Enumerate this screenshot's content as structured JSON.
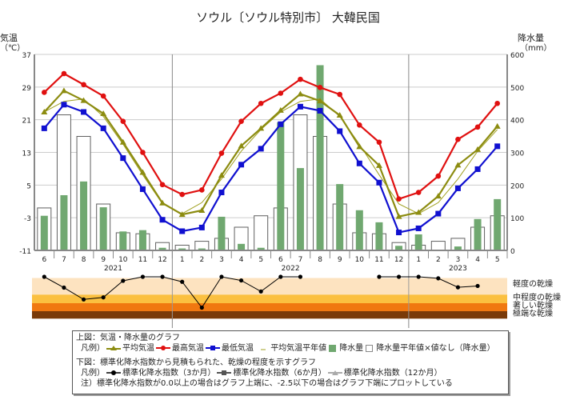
{
  "title": "ソウル〔ソウル特別市〕 大韓民国",
  "chart_data": [
    {
      "type": "line+bar",
      "title": "ソウル〔ソウル特別市〕 大韓民国",
      "ylabel_left": "気温",
      "ylabel_left_unit": "（℃）",
      "ylabel_right": "降水量",
      "ylabel_right_unit": "（mm）",
      "ylim_left": [
        -11,
        37
      ],
      "yticks_left": [
        -11,
        -3,
        5,
        13,
        21,
        29,
        37
      ],
      "ylim_right": [
        0,
        600
      ],
      "yticks_right": [
        0,
        100,
        200,
        300,
        400,
        500,
        600
      ],
      "grid": true,
      "categories": [
        "6",
        "7",
        "8",
        "9",
        "10",
        "11",
        "12",
        "1",
        "2",
        "3",
        "4",
        "5",
        "6",
        "7",
        "8",
        "9",
        "10",
        "11",
        "12",
        "1",
        "2",
        "3",
        "4",
        "5"
      ],
      "years": [
        {
          "label": "2021",
          "from": 0,
          "to": 6
        },
        {
          "label": "2022",
          "from": 7,
          "to": 18
        },
        {
          "label": "2023",
          "from": 19,
          "to": 23
        }
      ],
      "series": [
        {
          "name": "最高気温",
          "kind": "line",
          "axis": "left",
          "color": "#e01010",
          "marker": "circle",
          "values": [
            27.7,
            32.3,
            29.6,
            26.8,
            20.6,
            13.0,
            5.1,
            2.7,
            3.8,
            12.8,
            20.6,
            25.0,
            27.5,
            30.9,
            28.9,
            27.2,
            19.7,
            15.5,
            1.6,
            3.2,
            7.2,
            16.2,
            19.2,
            25.0
          ]
        },
        {
          "name": "平均気温",
          "kind": "line",
          "axis": "left",
          "color": "#8c8c10",
          "marker": "triangle",
          "values": [
            22.9,
            28.1,
            25.7,
            22.5,
            15.5,
            8.1,
            0.6,
            -2.2,
            -1.2,
            7.4,
            14.6,
            18.9,
            23.3,
            27.3,
            25.6,
            22.1,
            14.4,
            9.8,
            -2.7,
            -1.7,
            2.3,
            9.9,
            13.7,
            19.4
          ]
        },
        {
          "name": "最低気温",
          "kind": "line",
          "axis": "left",
          "color": "#1010d0",
          "marker": "square",
          "values": [
            18.9,
            24.7,
            22.9,
            18.9,
            11.6,
            4.0,
            -3.5,
            -6.3,
            -5.4,
            3.2,
            10.0,
            13.9,
            19.9,
            24.2,
            23.2,
            18.2,
            10.3,
            5.6,
            -6.6,
            -5.6,
            -2.0,
            4.2,
            8.9,
            14.5
          ]
        },
        {
          "name": "平均気温平年値",
          "kind": "thin-line",
          "axis": "left",
          "color": "#a0a020",
          "values": [
            22.9,
            25.5,
            26.1,
            21.8,
            15.0,
            7.5,
            0.4,
            -2.0,
            0.7,
            6.5,
            13.3,
            18.6,
            22.9,
            25.5,
            26.1,
            21.8,
            15.0,
            7.5,
            0.4,
            -2.0,
            0.7,
            6.5,
            13.3,
            18.6
          ]
        },
        {
          "name": "降水量",
          "kind": "bar",
          "axis": "right",
          "color": "#70a870",
          "values": [
            106,
            169,
            211,
            132,
            58,
            62,
            8,
            6,
            6,
            103,
            20,
            8,
            392,
            252,
            567,
            203,
            123,
            86,
            14,
            49,
            0,
            12,
            96,
            157
          ]
        },
        {
          "name": "降水量平年値",
          "kind": "hollow-bar",
          "axis": "right",
          "color": "#606060",
          "values": [
            130,
            415,
            349,
            142,
            54,
            51,
            24,
            16,
            28,
            37,
            71,
            106,
            130,
            415,
            349,
            142,
            54,
            51,
            24,
            16,
            28,
            37,
            71,
            106
          ]
        }
      ]
    },
    {
      "type": "line",
      "description_label": "標準化降水指数",
      "ylim": [
        -2.5,
        0.0
      ],
      "bands": [
        {
          "label": "軽度の乾燥",
          "from": 0,
          "to": -1.0,
          "color": "#fde3c0"
        },
        {
          "label": "中程度の乾燥",
          "from": -1.0,
          "to": -1.5,
          "color": "#fbc040"
        },
        {
          "label": "著しい乾燥",
          "from": -1.5,
          "to": -2.0,
          "color": "#f07810"
        },
        {
          "label": "極端な乾燥",
          "from": -2.0,
          "to": -2.5,
          "color": "#7a3a08"
        }
      ],
      "series": [
        {
          "name": "標準化降水指数（3か月）",
          "color": "#000000",
          "values": [
            0,
            -0.65,
            -1.35,
            -1.23,
            -0.24,
            0,
            0,
            -0.3,
            -1.85,
            0,
            -0.22,
            -0.88,
            0,
            0,
            null,
            null,
            null,
            0,
            0,
            0,
            -0.09,
            -0.63,
            -0.55,
            null
          ]
        }
      ]
    }
  ],
  "legend": {
    "upper_heading": "上図：気温・降水量のグラフ",
    "upper_prefix": "凡例）",
    "mean_temp": "平均気温",
    "max_temp": "最高気温",
    "min_temp": "最低気温",
    "normal_temp": "平均気温平年値",
    "precip": "降水量",
    "normal_precip": "降水量平年値",
    "no_value": "×値なし（降水量）",
    "lower_heading": "下図：標準化降水指数から見積もられた、乾燥の程度を示すグラフ",
    "lower_prefix": "凡例）",
    "spi3": "標準化降水指数（3か月）",
    "spi6": "標準化降水指数（6か月）",
    "spi12": "標準化降水指数（12か月）",
    "note": "注）標準化降水指数が0.0以上の場合はグラフ上端に、-2.5以下の場合はグラフ下端にプロットしている"
  }
}
